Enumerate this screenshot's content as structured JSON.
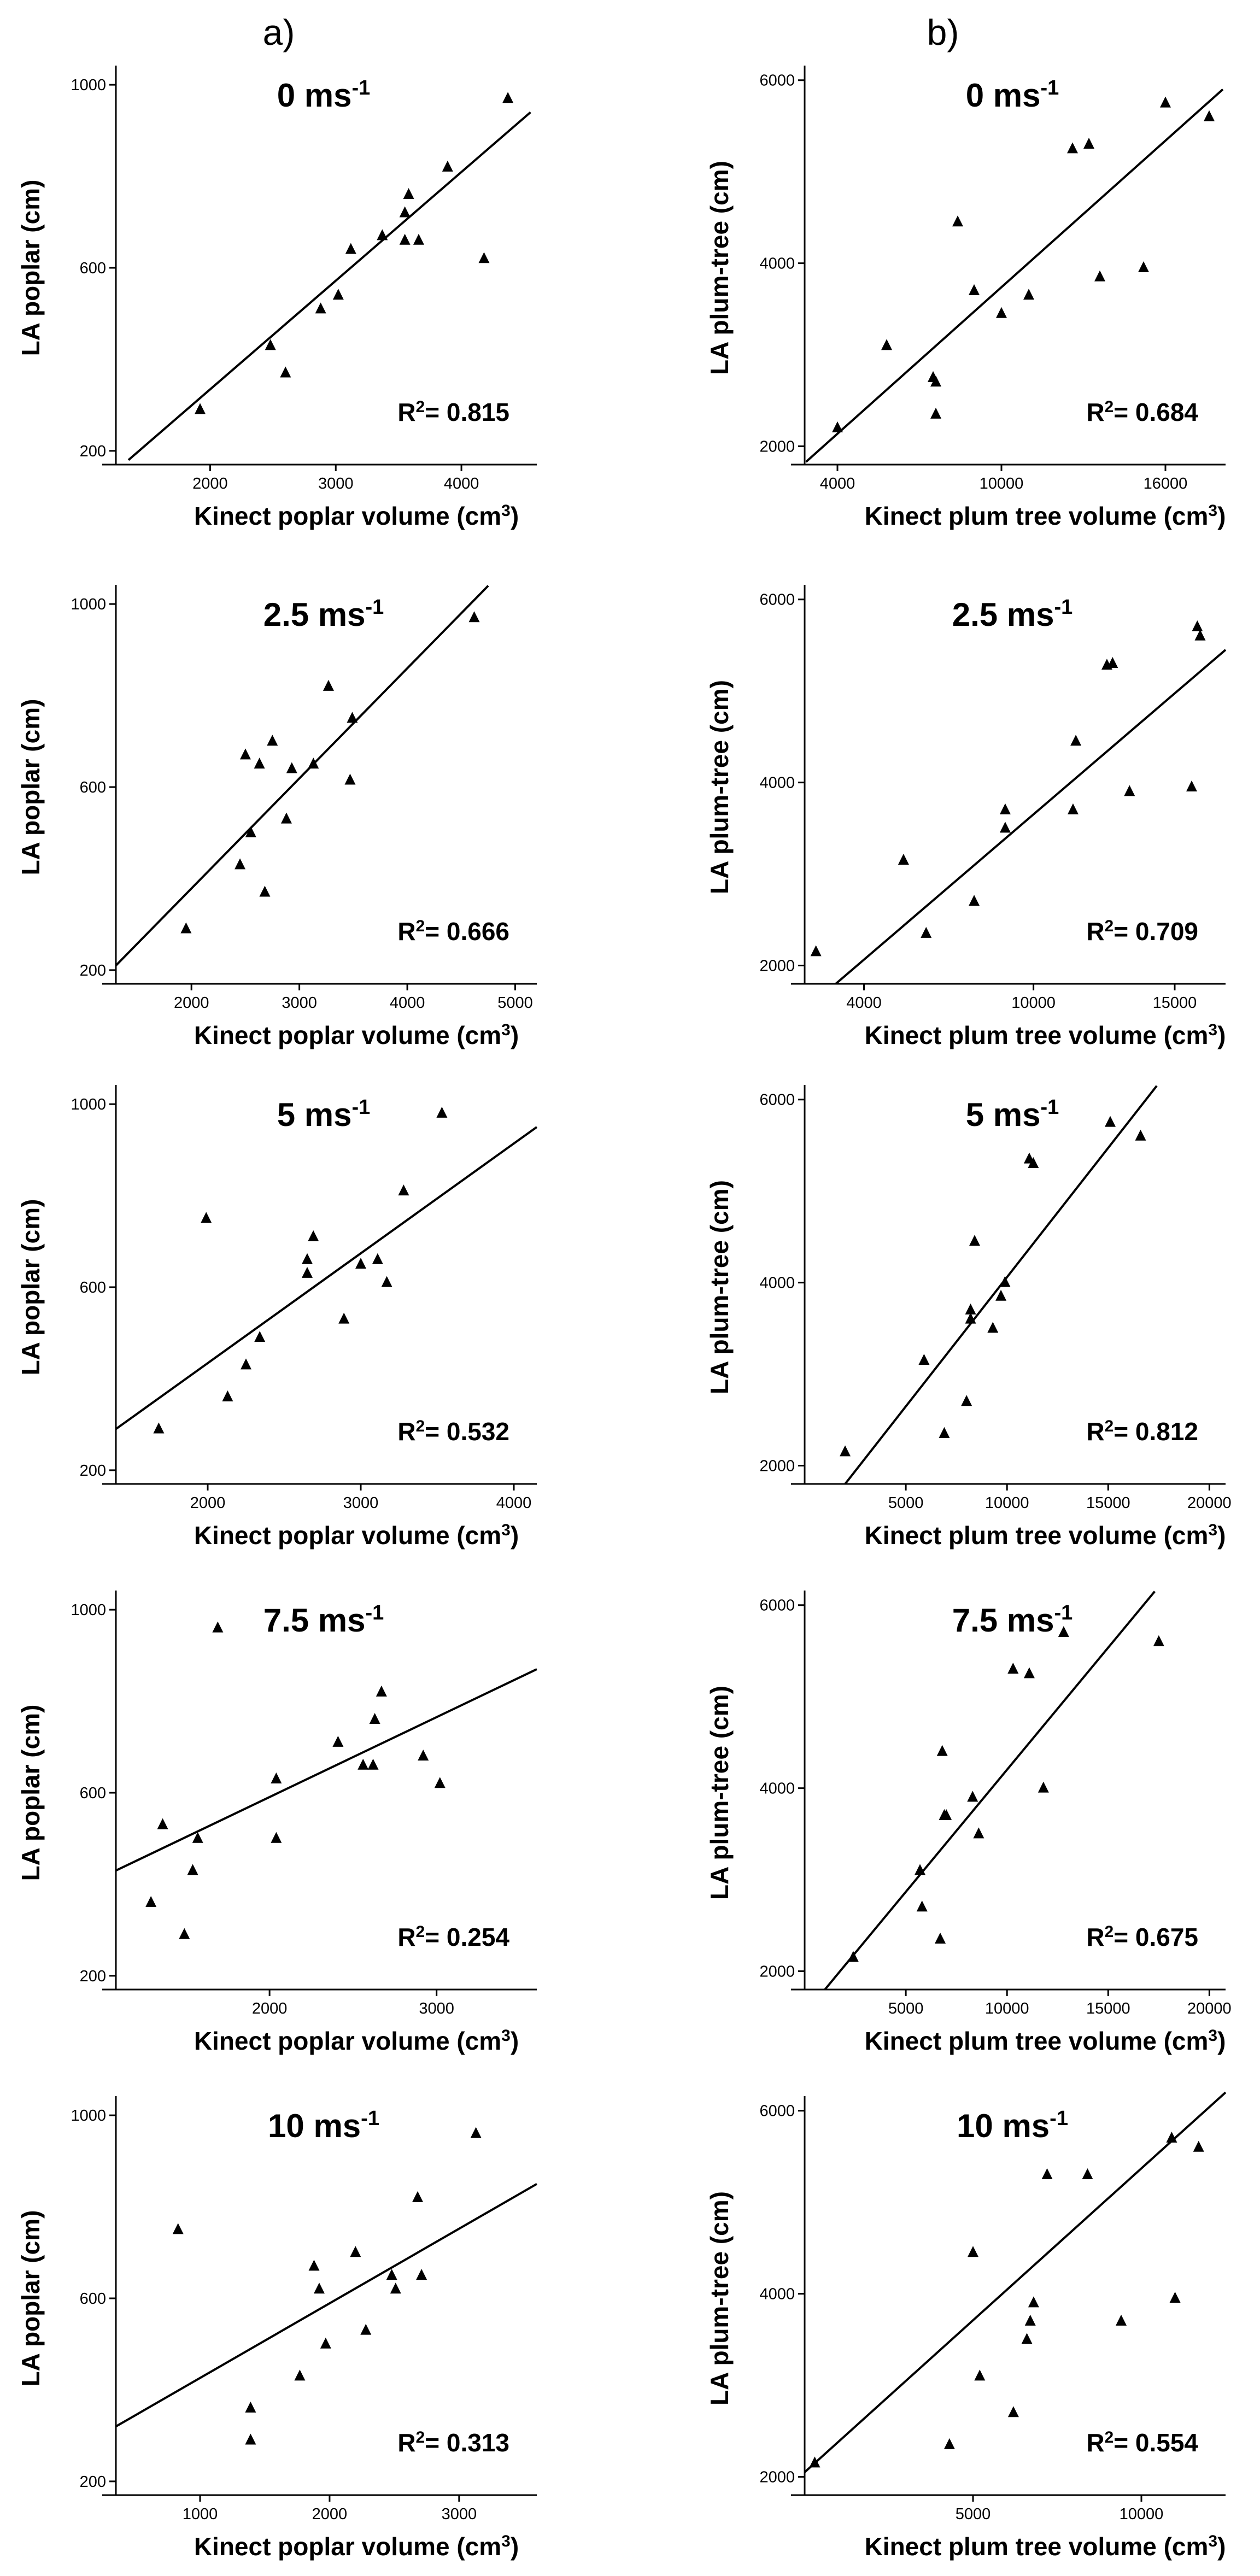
{
  "columns": [
    "a)",
    "b)"
  ],
  "chart_data": [
    {
      "type": "scatter",
      "row": 0,
      "col": 0,
      "title": "0 ms",
      "title_sup": "-1",
      "xlabel": "Kinect poplar volume (cm",
      "xlabel_sup": "3",
      "xlabel_end": ")",
      "ylabel": "LA poplar (cm)",
      "r2": "= 0.815",
      "r2_prefix": "R",
      "r2_sup": "2",
      "xlim": [
        1250,
        4600
      ],
      "ylim": [
        170,
        1030
      ],
      "xticks": [
        2000,
        3000,
        4000
      ],
      "yticks": [
        200,
        600,
        1000
      ],
      "x": [
        1920,
        2480,
        2600,
        2880,
        3020,
        3120,
        3370,
        3550,
        3550,
        3580,
        3660,
        3890,
        4180,
        4370
      ],
      "y": [
        290,
        430,
        370,
        510,
        540,
        640,
        670,
        660,
        720,
        760,
        660,
        820,
        620,
        970
      ],
      "fit": [
        [
          1350,
          180
        ],
        [
          4550,
          940
        ]
      ]
    },
    {
      "type": "scatter",
      "row": 0,
      "col": 1,
      "title": "0 ms",
      "title_sup": "-1",
      "xlabel": "Kinect plum tree volume (cm",
      "xlabel_sup": "3",
      "xlabel_end": ")",
      "ylabel": "LA plum-tree (cm)",
      "r2": "= 0.684",
      "r2_prefix": "R",
      "r2_sup": "2",
      "xlim": [
        2800,
        18200
      ],
      "ylim": [
        1800,
        6100
      ],
      "xticks": [
        4000,
        10000,
        16000
      ],
      "yticks": [
        2000,
        4000,
        6000
      ],
      "x": [
        4000,
        5800,
        7500,
        7600,
        7600,
        8400,
        9000,
        10000,
        11000,
        12600,
        13200,
        13600,
        15200,
        16000,
        17600
      ],
      "y": [
        2200,
        3100,
        2750,
        2350,
        2700,
        4450,
        3700,
        3450,
        3650,
        5250,
        5300,
        3850,
        3950,
        5750,
        5600
      ],
      "fit": [
        [
          2850,
          1830
        ],
        [
          18100,
          5900
        ]
      ]
    },
    {
      "type": "scatter",
      "row": 1,
      "col": 0,
      "title": "2.5 ms",
      "title_sup": "-1",
      "xlabel": "Kinect poplar volume (cm",
      "xlabel_sup": "3",
      "xlabel_end": ")",
      "ylabel": "LA poplar (cm)",
      "r2": "= 0.666",
      "r2_prefix": "R",
      "r2_sup": "2",
      "xlim": [
        1300,
        5200
      ],
      "ylim": [
        170,
        1030
      ],
      "xticks": [
        2000,
        3000,
        4000,
        5000
      ],
      "yticks": [
        200,
        600,
        1000
      ],
      "x": [
        1950,
        2450,
        2500,
        2550,
        2630,
        2680,
        2750,
        2880,
        2930,
        3130,
        3270,
        3470,
        3490,
        4620
      ],
      "y": [
        290,
        430,
        670,
        500,
        650,
        370,
        700,
        530,
        640,
        650,
        820,
        615,
        750,
        970
      ],
      "fit": [
        [
          1300,
          210
        ],
        [
          4750,
          1040
        ]
      ]
    },
    {
      "type": "scatter",
      "row": 1,
      "col": 1,
      "title": "2.5 ms",
      "title_sup": "-1",
      "xlabel": "Kinect plum tree volume (cm",
      "xlabel_sup": "3",
      "xlabel_end": ")",
      "ylabel": "LA plum-tree (cm)",
      "r2": "= 0.709",
      "r2_prefix": "R",
      "r2_sup": "2",
      "xlim": [
        1900,
        16800
      ],
      "ylim": [
        1800,
        6100
      ],
      "xticks": [
        4000,
        10000,
        15000
      ],
      "yticks": [
        2000,
        4000,
        6000
      ],
      "x": [
        2300,
        5400,
        6200,
        7900,
        9000,
        9000,
        11400,
        11500,
        12600,
        12800,
        13400,
        15600,
        15800,
        15900
      ],
      "y": [
        2150,
        3150,
        2350,
        2700,
        3500,
        3700,
        3700,
        4450,
        5280,
        5300,
        3900,
        3950,
        5700,
        5600
      ],
      "fit": [
        [
          3000,
          1800
        ],
        [
          16800,
          5450
        ]
      ]
    },
    {
      "type": "scatter",
      "row": 2,
      "col": 0,
      "title": "5 ms",
      "title_sup": "-1",
      "xlabel": "Kinect poplar volume (cm",
      "xlabel_sup": "3",
      "xlabel_end": ")",
      "ylabel": "LA poplar (cm)",
      "r2": "= 0.532",
      "r2_prefix": "R",
      "r2_sup": "2",
      "xlim": [
        1400,
        4150
      ],
      "ylim": [
        170,
        1030
      ],
      "xticks": [
        2000,
        3000,
        4000
      ],
      "yticks": [
        200,
        600,
        1000
      ],
      "x": [
        1680,
        1990,
        2130,
        2250,
        2340,
        2650,
        2650,
        2690,
        2890,
        3000,
        3110,
        3170,
        3280,
        3530
      ],
      "y": [
        290,
        750,
        360,
        430,
        490,
        630,
        660,
        710,
        530,
        650,
        660,
        610,
        810,
        980
      ],
      "fit": [
        [
          1400,
          290
        ],
        [
          4150,
          950
        ]
      ]
    },
    {
      "type": "scatter",
      "row": 2,
      "col": 1,
      "title": "5 ms",
      "title_sup": "-1",
      "xlabel": "Kinect plum tree volume (cm",
      "xlabel_sup": "3",
      "xlabel_end": ")",
      "ylabel": "LA plum-tree (cm)",
      "r2": "= 0.812",
      "r2_prefix": "R",
      "r2_sup": "2",
      "xlim": [
        0,
        20800
      ],
      "ylim": [
        1800,
        6100
      ],
      "xticks": [
        5000,
        10000,
        15000,
        20000
      ],
      "yticks": [
        2000,
        4000,
        6000
      ],
      "x": [
        2000,
        5900,
        6900,
        8000,
        8200,
        8200,
        8400,
        9300,
        9700,
        9900,
        11100,
        11300,
        15100,
        16600
      ],
      "y": [
        2150,
        3150,
        2350,
        2700,
        3600,
        3700,
        4450,
        3500,
        3850,
        4000,
        5350,
        5300,
        5750,
        5600
      ],
      "fit": [
        [
          2000,
          1800
        ],
        [
          17400,
          6150
        ]
      ]
    },
    {
      "type": "scatter",
      "row": 3,
      "col": 0,
      "title": "7.5 ms",
      "title_sup": "-1",
      "xlabel": "Kinect poplar volume (cm",
      "xlabel_sup": "3",
      "xlabel_end": ")",
      "ylabel": "LA poplar (cm)",
      "r2": "= 0.254",
      "r2_prefix": "R",
      "r2_sup": "2",
      "xlim": [
        1080,
        3600
      ],
      "ylim": [
        170,
        1030
      ],
      "xticks": [
        2000,
        3000
      ],
      "yticks": [
        200,
        600,
        1000
      ],
      "x": [
        1290,
        1360,
        1490,
        1540,
        1570,
        1690,
        2040,
        2040,
        2410,
        2560,
        2620,
        2630,
        2670,
        2920,
        3020
      ],
      "y": [
        360,
        530,
        290,
        430,
        500,
        960,
        630,
        500,
        710,
        660,
        660,
        760,
        820,
        680,
        620
      ],
      "fit": [
        [
          1080,
          430
        ],
        [
          3600,
          870
        ]
      ]
    },
    {
      "type": "scatter",
      "row": 3,
      "col": 1,
      "title": "7.5 ms",
      "title_sup": "-1",
      "xlabel": "Kinect plum tree volume (cm",
      "xlabel_sup": "3",
      "xlabel_end": ")",
      "ylabel": "LA plum-tree (cm)",
      "r2": "= 0.675",
      "r2_prefix": "R",
      "r2_sup": "2",
      "xlim": [
        0,
        20800
      ],
      "ylim": [
        1800,
        6100
      ],
      "xticks": [
        5000,
        10000,
        15000,
        20000
      ],
      "yticks": [
        2000,
        4000,
        6000
      ],
      "x": [
        2400,
        5700,
        5800,
        6700,
        6800,
        6900,
        7000,
        8300,
        8600,
        10300,
        11100,
        11800,
        12800,
        17500
      ],
      "y": [
        2150,
        3100,
        2700,
        2350,
        4400,
        3700,
        3700,
        3900,
        3500,
        5300,
        5250,
        4000,
        5700,
        5600
      ],
      "fit": [
        [
          1000,
          1800
        ],
        [
          17300,
          6150
        ]
      ]
    },
    {
      "type": "scatter",
      "row": 4,
      "col": 0,
      "title": "10 ms",
      "title_sup": "-1",
      "xlabel": "Kinect poplar volume (cm",
      "xlabel_sup": "3",
      "xlabel_end": ")",
      "ylabel": "LA poplar (cm)",
      "r2": "= 0.313",
      "r2_prefix": "R",
      "r2_sup": "2",
      "xlim": [
        350,
        3600
      ],
      "ylim": [
        170,
        1030
      ],
      "xticks": [
        1000,
        2000,
        3000
      ],
      "yticks": [
        200,
        600,
        1000
      ],
      "x": [
        830,
        1390,
        1390,
        1770,
        1880,
        1920,
        1970,
        2200,
        2280,
        2480,
        2510,
        2680,
        2710,
        3130
      ],
      "y": [
        750,
        290,
        360,
        430,
        670,
        620,
        500,
        700,
        530,
        650,
        620,
        820,
        650,
        960
      ],
      "fit": [
        [
          350,
          320
        ],
        [
          3600,
          850
        ]
      ]
    },
    {
      "type": "scatter",
      "row": 4,
      "col": 1,
      "title": "10 ms",
      "title_sup": "-1",
      "xlabel": "Kinect plum tree volume (cm",
      "xlabel_sup": "3",
      "xlabel_end": ")",
      "ylabel": "LA plum-tree (cm)",
      "r2": "= 0.554",
      "r2_prefix": "R",
      "r2_sup": "2",
      "xlim": [
        0,
        12500
      ],
      "ylim": [
        1800,
        6100
      ],
      "xticks": [
        5000,
        10000
      ],
      "yticks": [
        2000,
        4000,
        6000
      ],
      "x": [
        300,
        4300,
        5000,
        5200,
        6200,
        6600,
        6700,
        6800,
        7200,
        8400,
        9400,
        10900,
        11000,
        11700
      ],
      "y": [
        2150,
        2350,
        4450,
        3100,
        2700,
        3500,
        3700,
        3900,
        5300,
        5300,
        3700,
        5700,
        3950,
        5600
      ],
      "fit": [
        [
          0,
          2050
        ],
        [
          12500,
          6200
        ]
      ]
    }
  ]
}
